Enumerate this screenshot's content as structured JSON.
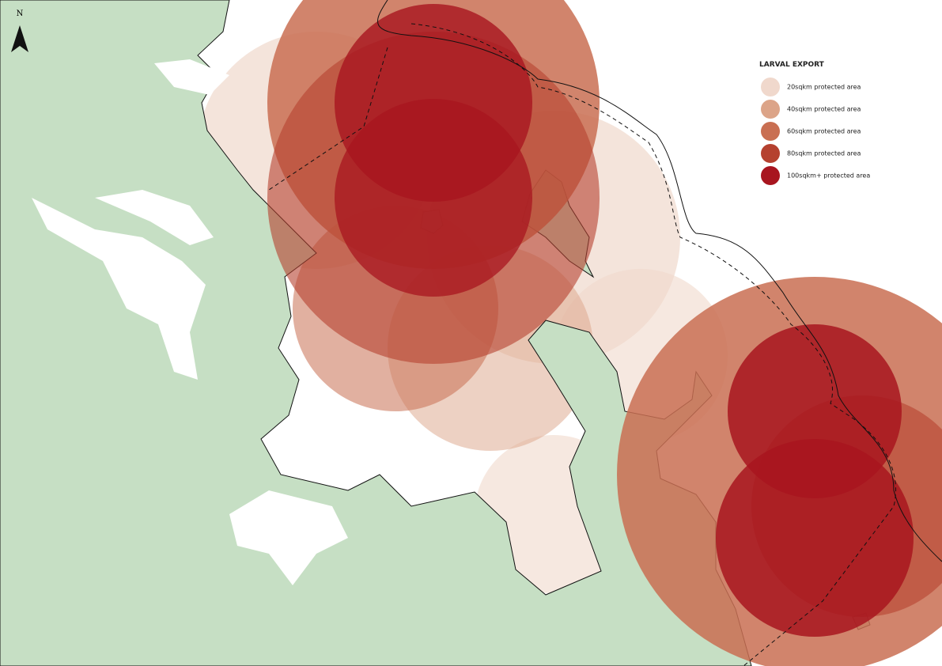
{
  "north_arrow": {
    "label": "N"
  },
  "legend": {
    "title": "LARVAL EXPORT",
    "items": [
      {
        "label": "20sqkm protected area",
        "color": "#f0d8cc"
      },
      {
        "label": "40sqkm protected area",
        "color": "#dca488"
      },
      {
        "label": "60sqkm protected area",
        "color": "#c96f52"
      },
      {
        "label": "80sqkm protected area",
        "color": "#b5412f"
      },
      {
        "label": "100sqkm+ protected area",
        "color": "#a8151f"
      }
    ]
  }
}
